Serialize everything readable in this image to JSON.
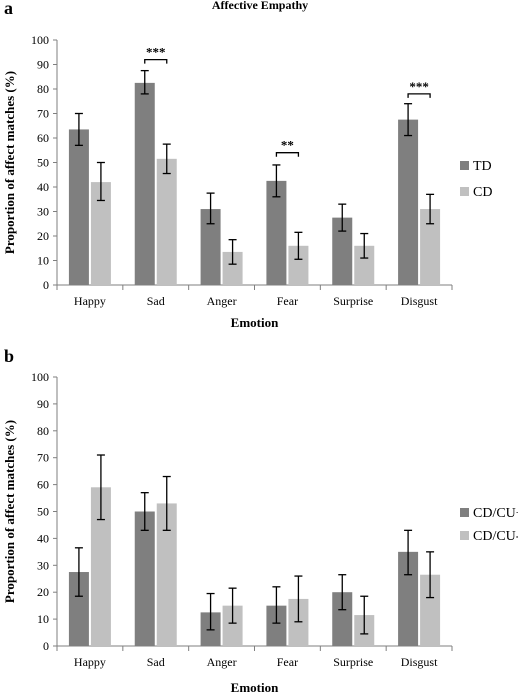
{
  "colors": {
    "dark": "#7f7f7f",
    "light": "#c0c0c0",
    "axis": "#7f7f7f"
  },
  "chart_data": [
    {
      "type": "bar",
      "panel_label": "a",
      "title": "Affective Empathy",
      "xlabel": "Emotion",
      "ylabel": "Proportion of affect matches (%)",
      "ylim": [
        0,
        100
      ],
      "yticks": [
        0,
        10,
        20,
        30,
        40,
        50,
        60,
        70,
        80,
        90,
        100
      ],
      "grid": false,
      "legend_position": "right",
      "categories": [
        "Happy",
        "Sad",
        "Anger",
        "Fear",
        "Surprise",
        "Disgust"
      ],
      "series": [
        {
          "name": "TD",
          "values": [
            63.5,
            82.5,
            31,
            42.5,
            27.5,
            67.5
          ],
          "err_low": [
            57,
            78,
            25,
            36,
            22,
            61
          ],
          "err_high": [
            70,
            87.5,
            37.5,
            49,
            33,
            74
          ]
        },
        {
          "name": "CD",
          "values": [
            42,
            51.5,
            13.5,
            16,
            16,
            31
          ],
          "err_low": [
            34.5,
            45.5,
            8.5,
            10.5,
            11,
            25
          ],
          "err_high": [
            50,
            57.5,
            18.5,
            21.5,
            21,
            37
          ]
        }
      ],
      "annotations": [
        {
          "category": "Sad",
          "text": "***",
          "y": 92
        },
        {
          "category": "Fear",
          "text": "**",
          "y": 54
        },
        {
          "category": "Disgust",
          "text": "***",
          "y": 78
        }
      ]
    },
    {
      "type": "bar",
      "panel_label": "b",
      "title": "",
      "xlabel": "Emotion",
      "ylabel": "Proportion of affect matches (%)",
      "ylim": [
        0,
        100
      ],
      "yticks": [
        0,
        10,
        20,
        30,
        40,
        50,
        60,
        70,
        80,
        90,
        100
      ],
      "grid": false,
      "legend_position": "right",
      "categories": [
        "Happy",
        "Sad",
        "Anger",
        "Fear",
        "Surprise",
        "Disgust"
      ],
      "series": [
        {
          "name": "CD/CU+",
          "values": [
            27.5,
            50,
            12.5,
            15,
            20,
            35
          ],
          "err_low": [
            18.5,
            43,
            6,
            8.5,
            13.5,
            26.5
          ],
          "err_high": [
            36.5,
            57,
            19.5,
            22,
            26.5,
            43
          ]
        },
        {
          "name": "CD/CU-",
          "values": [
            59,
            53,
            15,
            17.5,
            11.5,
            26.5
          ],
          "err_low": [
            47,
            43,
            8.5,
            9,
            4.5,
            18
          ],
          "err_high": [
            71,
            63,
            21.5,
            26,
            18.5,
            35
          ]
        }
      ],
      "annotations": []
    }
  ]
}
